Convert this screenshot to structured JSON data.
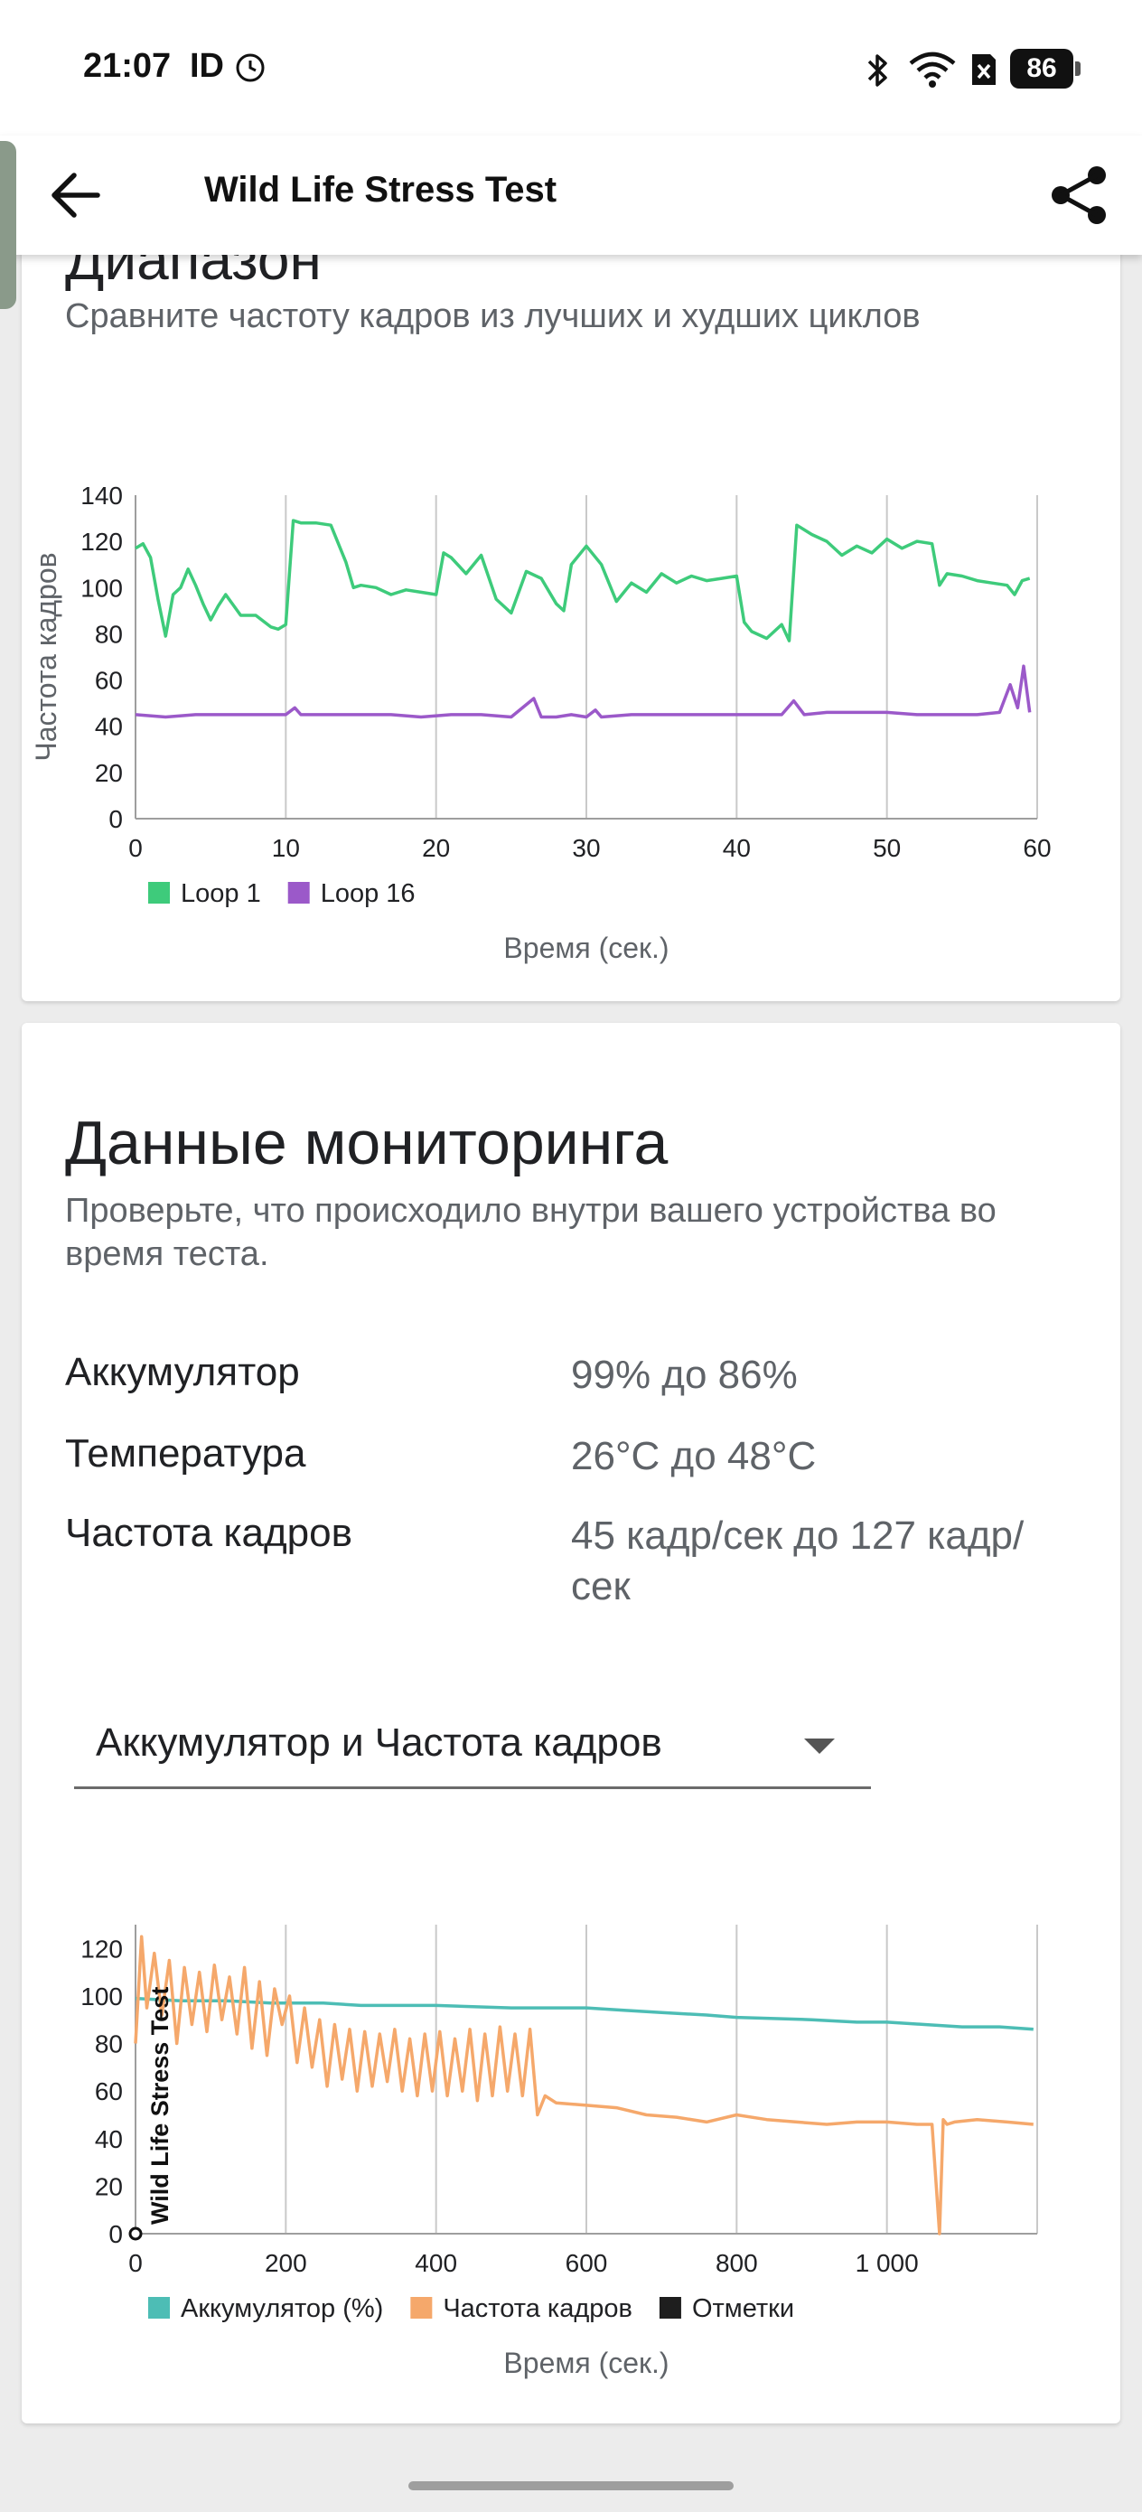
{
  "status_bar": {
    "time": "21:07",
    "carrier_label": "ID",
    "battery_level": "86",
    "icons": [
      "alarm-clock-icon",
      "bluetooth-icon",
      "wifi-icon",
      "sim-disabled-icon",
      "battery-icon"
    ]
  },
  "app_bar": {
    "title": "Wild Life Stress Test",
    "back_icon": "arrow-left-icon",
    "share_icon": "share-icon"
  },
  "range_card": {
    "title_partial": "Диапазон",
    "subtitle": "Сравните частоту кадров из лучших и худших циклов",
    "chart_data": {
      "type": "line",
      "ylabel": "Частота кадров",
      "xlabel": "Время (сек.)",
      "xlim": [
        0,
        60
      ],
      "ylim": [
        0,
        140
      ],
      "x_ticks": [
        "0",
        "10",
        "20",
        "30",
        "40",
        "50",
        "60"
      ],
      "y_ticks": [
        "0",
        "20",
        "40",
        "60",
        "80",
        "100",
        "120",
        "140"
      ],
      "legend_position": "bottom-left",
      "series": [
        {
          "name": "Loop 1",
          "color": "#3ecb7b",
          "x": [
            0,
            0.5,
            1,
            1.5,
            2,
            2.5,
            3,
            3.5,
            4,
            4.5,
            5,
            5.5,
            6,
            7,
            8,
            9,
            9.5,
            10,
            10.5,
            11,
            12,
            13,
            14,
            14.5,
            15,
            16,
            17,
            18,
            19,
            20,
            20.5,
            21,
            22,
            23,
            24,
            25,
            26,
            27,
            28,
            28.5,
            29,
            30,
            31,
            32,
            32.5,
            33,
            34,
            35,
            36,
            37,
            38,
            39,
            40,
            40.5,
            41,
            42,
            43,
            43.5,
            44,
            45,
            46,
            47,
            48,
            49,
            50,
            51,
            52,
            53,
            53.5,
            54,
            55,
            56,
            57,
            58,
            58.5,
            59,
            59.5
          ],
          "y": [
            117,
            119,
            113,
            95,
            79,
            97,
            100,
            108,
            101,
            93,
            86,
            92,
            97,
            88,
            88,
            83,
            82,
            84,
            129,
            128,
            128,
            127,
            111,
            100,
            101,
            100,
            97,
            99,
            98,
            97,
            115,
            113,
            106,
            114,
            95,
            89,
            107,
            104,
            93,
            90,
            110,
            118,
            110,
            94,
            98,
            102,
            98,
            106,
            102,
            105,
            103,
            104,
            105,
            85,
            81,
            78,
            84,
            77,
            127,
            123,
            120,
            114,
            118,
            115,
            121,
            117,
            120,
            119,
            101,
            106,
            105,
            103,
            102,
            101,
            97,
            103,
            104
          ]
        },
        {
          "name": "Loop 16",
          "color": "#9b59c9",
          "x": [
            0,
            2,
            4,
            6,
            8,
            10,
            10.6,
            11,
            13,
            15,
            17,
            19,
            21,
            23,
            25,
            26.5,
            27,
            28,
            29,
            30,
            30.6,
            31,
            33,
            35,
            37,
            39,
            41,
            43,
            43.8,
            44.5,
            46,
            48,
            50,
            52,
            54,
            56,
            57.5,
            58.2,
            58.7,
            59.1,
            59.5
          ],
          "y": [
            45,
            44,
            45,
            45,
            45,
            45,
            48,
            45,
            45,
            45,
            45,
            44,
            45,
            45,
            44,
            52,
            44,
            44,
            45,
            44,
            47,
            44,
            45,
            45,
            45,
            45,
            45,
            45,
            51,
            45,
            46,
            46,
            46,
            45,
            45,
            45,
            46,
            58,
            48,
            66,
            46
          ]
        }
      ]
    }
  },
  "monitoring_card": {
    "title": "Данные мониторинга",
    "subtitle": "Проверьте, что происходило внутри вашего устройства во время теста.",
    "stats": [
      {
        "label": "Аккумулятор",
        "value": "99% до 86%"
      },
      {
        "label": "Температура",
        "value": "26°C до 48°C"
      },
      {
        "label": "Частота кадров",
        "value": "45 кадр/сек до 127 кадр/сек"
      }
    ],
    "dropdown": {
      "selected": "Аккумулятор и Частота кадров",
      "icon": "dropdown-arrow-icon"
    },
    "chart_data": {
      "type": "line",
      "xlabel": "Время (сек.)",
      "xlim": [
        0,
        1200
      ],
      "ylim": [
        0,
        130
      ],
      "x_ticks": [
        "0",
        "200",
        "400",
        "600",
        "800",
        "1 000"
      ],
      "y_ticks": [
        "0",
        "20",
        "40",
        "60",
        "80",
        "100",
        "120"
      ],
      "annotation": "Wild Life Stress Test",
      "legend_position": "bottom-left",
      "series": [
        {
          "name": "Аккумулятор (%)",
          "color": "#4dbdb5",
          "x": [
            0,
            60,
            120,
            180,
            250,
            300,
            400,
            500,
            600,
            650,
            700,
            760,
            800,
            900,
            960,
            1000,
            1050,
            1100,
            1150,
            1195
          ],
          "y": [
            99,
            98,
            98,
            97,
            97,
            96,
            96,
            95,
            95,
            94,
            93,
            92,
            91,
            90,
            89,
            89,
            88,
            87,
            87,
            86
          ]
        },
        {
          "name": "Частота кадров",
          "color": "#f5a86b",
          "x": [
            0,
            8,
            15,
            25,
            35,
            45,
            55,
            65,
            75,
            85,
            95,
            105,
            115,
            125,
            135,
            145,
            155,
            165,
            175,
            185,
            195,
            205,
            215,
            225,
            235,
            245,
            255,
            265,
            275,
            285,
            295,
            305,
            315,
            325,
            335,
            345,
            355,
            365,
            375,
            385,
            395,
            405,
            415,
            425,
            435,
            445,
            455,
            465,
            475,
            485,
            495,
            505,
            515,
            525,
            535,
            545,
            560,
            600,
            640,
            680,
            720,
            760,
            800,
            840,
            880,
            920,
            960,
            1000,
            1040,
            1060,
            1070,
            1075,
            1080,
            1090,
            1120,
            1160,
            1195
          ],
          "y": [
            80,
            125,
            95,
            118,
            92,
            115,
            80,
            112,
            88,
            110,
            85,
            113,
            90,
            108,
            84,
            112,
            78,
            106,
            75,
            103,
            88,
            100,
            72,
            95,
            70,
            90,
            62,
            88,
            65,
            86,
            60,
            85,
            62,
            84,
            64,
            86,
            60,
            82,
            58,
            84,
            60,
            85,
            58,
            82,
            60,
            86,
            56,
            84,
            58,
            87,
            60,
            84,
            58,
            86,
            50,
            58,
            55,
            54,
            53,
            50,
            49,
            47,
            50,
            48,
            47,
            46,
            47,
            47,
            46,
            46,
            0,
            48,
            46,
            47,
            48,
            47,
            46
          ]
        },
        {
          "name": "Отметки",
          "color": "#1e1e1e",
          "x": [
            0
          ],
          "y": [
            0
          ]
        }
      ]
    }
  }
}
